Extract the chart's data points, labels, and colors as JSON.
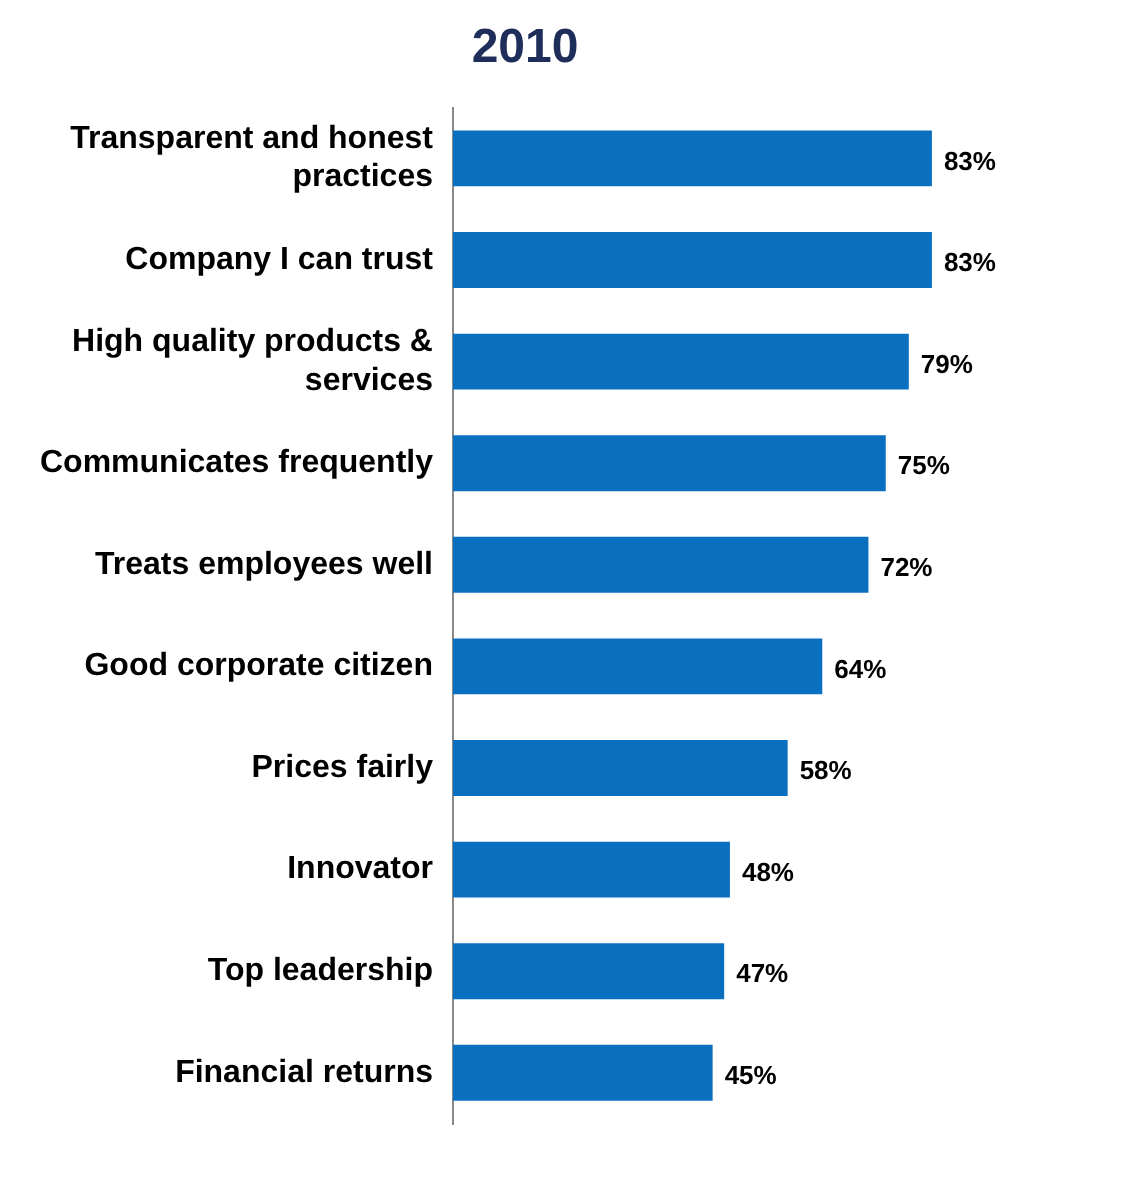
{
  "chart_data": {
    "type": "bar",
    "orientation": "horizontal",
    "title": "2010",
    "categories": [
      "Transparent and honest practices",
      "Company I can trust",
      "High quality products & services",
      "Communicates frequently",
      "Treats employees well",
      "Good corporate citizen",
      "Prices fairly",
      "Innovator",
      "Top leadership",
      "Financial returns"
    ],
    "values": [
      83,
      83,
      79,
      75,
      72,
      64,
      58,
      48,
      47,
      45
    ],
    "value_labels": [
      "83%",
      "83%",
      "79%",
      "75%",
      "72%",
      "64%",
      "58%",
      "48%",
      "47%",
      "45%"
    ],
    "color": "#0b6fc0",
    "tick_labels": "y",
    "grid": false,
    "legend": false
  }
}
